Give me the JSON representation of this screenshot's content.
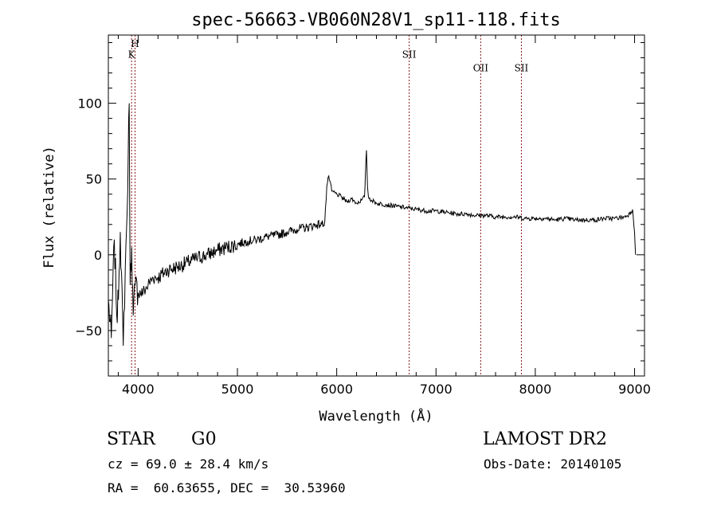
{
  "chart_data": {
    "type": "line",
    "title": "spec-56663-VB060N28V1_sp11-118.fits",
    "xlabel": "Wavelength (Å)",
    "ylabel": "Flux (relative)",
    "xlim": [
      3700,
      9100
    ],
    "ylim": [
      -80,
      145
    ],
    "xticks": [
      4000,
      5000,
      6000,
      7000,
      8000,
      9000
    ],
    "xtick_labels": [
      "4000",
      "5000",
      "6000",
      "7000",
      "8000",
      "9000"
    ],
    "yticks": [
      -50,
      0,
      50,
      100
    ],
    "ytick_labels": [
      "−50",
      "0",
      "50",
      "100"
    ],
    "grid": false,
    "legend": "none",
    "line_color": "#000000",
    "marker_color": "#8b1a1a",
    "series": [
      {
        "x": [
          3700,
          3730,
          3760,
          3790,
          3820,
          3850,
          3870,
          3890,
          3900,
          3910,
          3920,
          3935,
          3950,
          3970,
          4000,
          4050,
          4100,
          4150,
          4200,
          4300,
          4400,
          4500,
          4600,
          4700,
          4800,
          4900,
          5000,
          5100,
          5200,
          5300,
          5400,
          5500,
          5600,
          5700,
          5800,
          5850,
          5880,
          5900,
          5920,
          5950,
          6000,
          6050,
          6100,
          6150,
          6200,
          6250,
          6280,
          6290,
          6300,
          6310,
          6320,
          6350,
          6400,
          6500,
          6600,
          6700,
          6800,
          6900,
          7000,
          7100,
          7200,
          7300,
          7400,
          7500,
          7600,
          7700,
          7800,
          7900,
          8000,
          8100,
          8200,
          8300,
          8400,
          8500,
          8600,
          8700,
          8800,
          8900,
          8950,
          8980,
          9000,
          9010
        ],
        "y": [
          -30,
          -55,
          10,
          -45,
          15,
          -60,
          -10,
          30,
          65,
          100,
          -20,
          5,
          -40,
          -20,
          -25,
          -25,
          -20,
          -15,
          -15,
          -10,
          -8,
          -5,
          -2,
          0,
          3,
          5,
          7,
          9,
          10,
          12,
          13,
          15,
          17,
          18,
          20,
          20,
          22,
          45,
          52,
          42,
          40,
          38,
          35,
          37,
          34,
          36,
          38,
          55,
          69,
          45,
          38,
          36,
          34,
          33,
          32,
          31,
          30,
          29,
          29,
          28,
          27,
          27,
          26,
          26,
          25,
          25,
          25,
          24,
          24,
          24,
          23,
          24,
          23,
          23,
          23,
          24,
          24,
          25,
          27,
          30,
          15,
          0
        ]
      }
    ],
    "line_markers": [
      {
        "label": "K",
        "x": 3934,
        "label_y": 130
      },
      {
        "label": "H",
        "x": 3969,
        "label_y": 137
      },
      {
        "label": "SII",
        "x": 6730,
        "label_y": 130
      },
      {
        "label": "OII",
        "x": 7450,
        "label_y": 121
      },
      {
        "label": "SII",
        "x": 7860,
        "label_y": 121
      }
    ]
  },
  "info": {
    "object_class": "STAR",
    "subclass": "G0",
    "survey": "LAMOST DR2",
    "cz": "cz = 69.0 ± 28.4 km/s",
    "obs_date": "Obs-Date: 20140105",
    "coords": "RA =  60.63655, DEC =  30.53960"
  }
}
